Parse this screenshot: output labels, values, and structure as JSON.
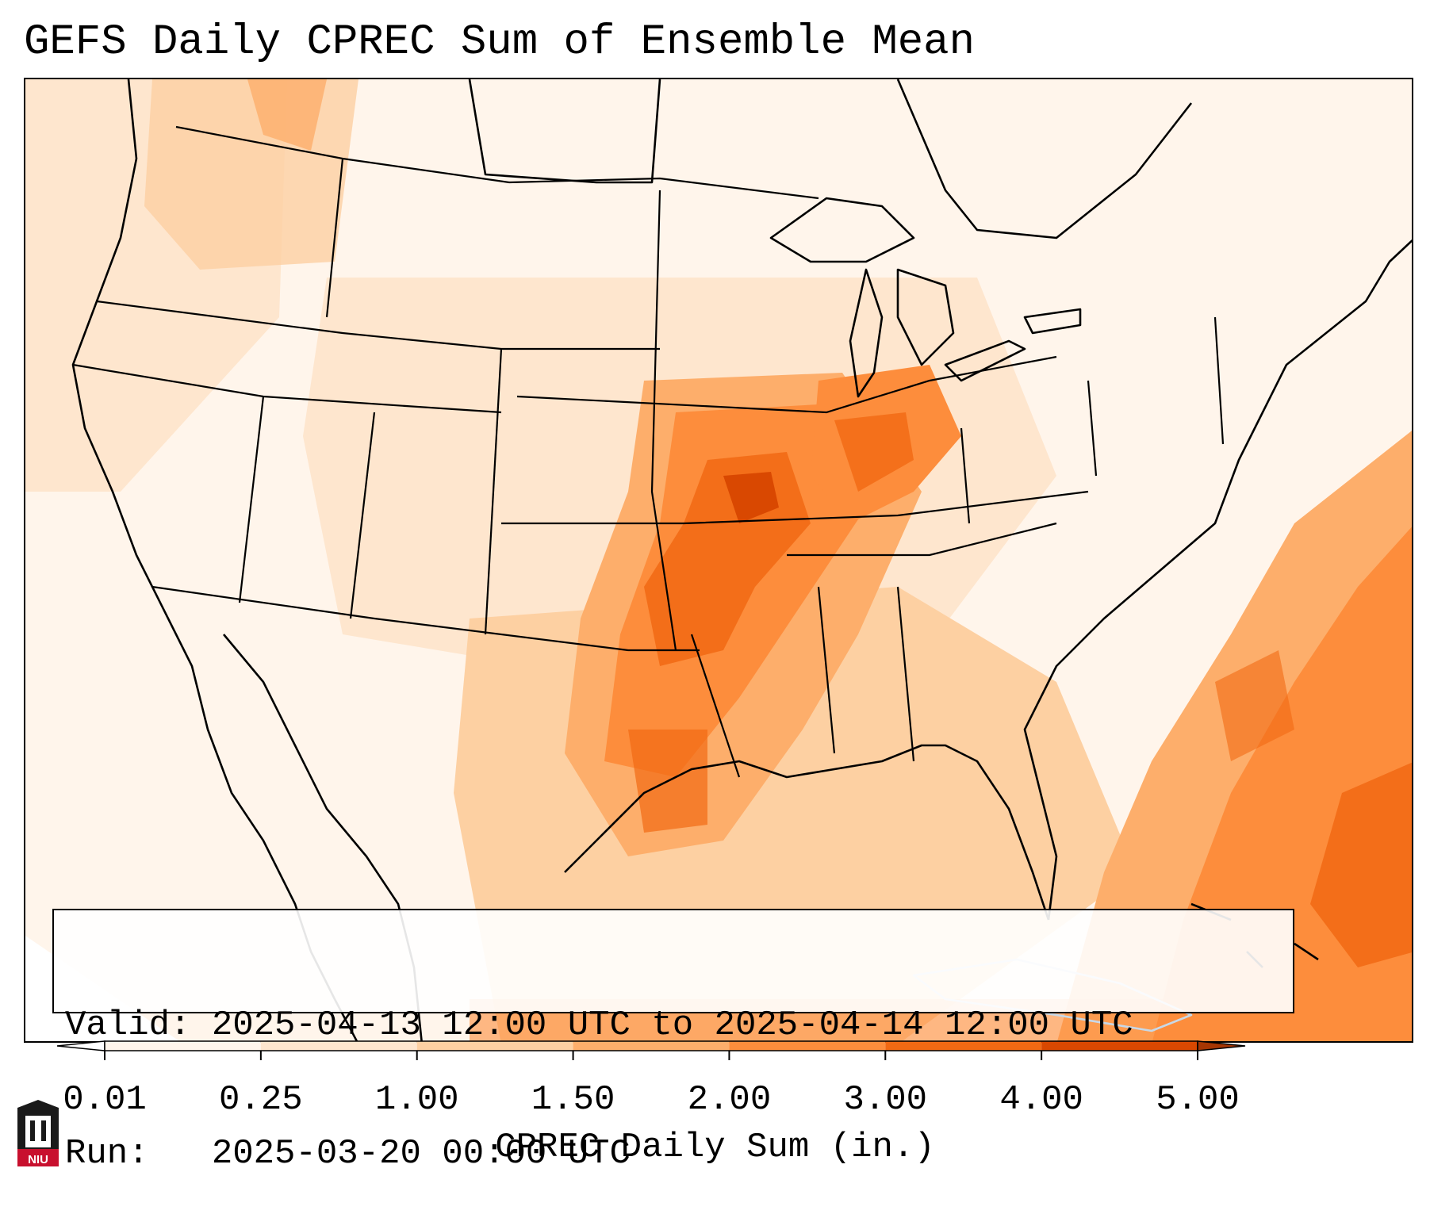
{
  "title": "GEFS Daily CPREC Sum of Ensemble Mean",
  "info": {
    "valid_label": "Valid:",
    "valid_value": "2025-04-13 12:00 UTC to 2025-04-14 12:00 UTC",
    "run_label": "Run:",
    "run_value": "2025-03-20 00:00 UTC"
  },
  "colorbar": {
    "label": "CPREC Daily Sum (in.)",
    "ticks": [
      "0.01",
      "0.25",
      "1.00",
      "1.50",
      "2.00",
      "3.00",
      "4.00",
      "5.00"
    ],
    "colors": [
      "#fff5eb",
      "#fee6ce",
      "#fdd0a2",
      "#fdae6b",
      "#fd8d3c",
      "#f16913",
      "#d94801",
      "#a63603"
    ],
    "extend": "both"
  },
  "map": {
    "projection": "Lambert Conformal",
    "region": "Continental United States",
    "coastline_color": "#000000",
    "high_precip_areas": [
      "Kansas-Missouri-Oklahoma",
      "Illinois-Indiana",
      "Arkansas-Louisiana",
      "Atlantic off Southeast coast",
      "Bahamas"
    ]
  },
  "logo": {
    "icon": "niu-building-icon",
    "text": "NIU",
    "colors": [
      "#c8102e",
      "#000000"
    ]
  }
}
